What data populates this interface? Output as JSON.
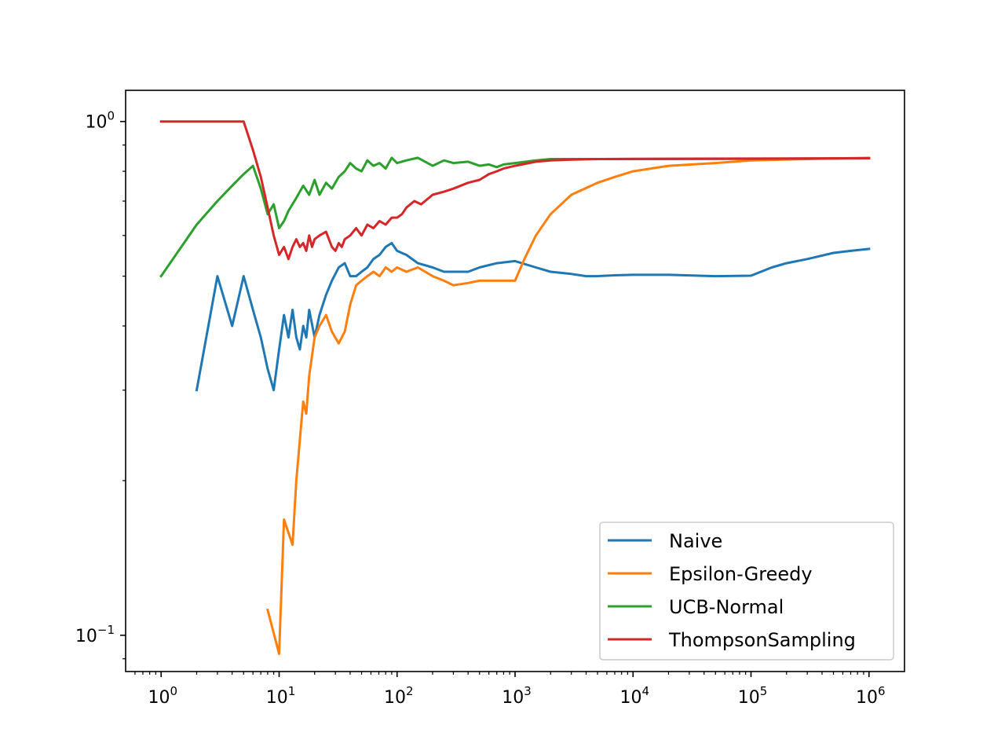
{
  "chart_data": {
    "type": "line",
    "title": "",
    "xlabel": "",
    "ylabel": "",
    "xscale": "log",
    "yscale": "log",
    "xlim": [
      0.5,
      2000000
    ],
    "ylim": [
      0.085,
      1.15
    ],
    "x_ticks": [
      {
        "base": "10",
        "exp": "0",
        "value": 1
      },
      {
        "base": "10",
        "exp": "1",
        "value": 10
      },
      {
        "base": "10",
        "exp": "2",
        "value": 100
      },
      {
        "base": "10",
        "exp": "3",
        "value": 1000
      },
      {
        "base": "10",
        "exp": "4",
        "value": 10000
      },
      {
        "base": "10",
        "exp": "5",
        "value": 100000
      },
      {
        "base": "10",
        "exp": "6",
        "value": 1000000
      }
    ],
    "y_ticks": [
      {
        "base": "10",
        "exp": "0",
        "value": 1
      },
      {
        "base": "10",
        "exp": "−1",
        "value": 0.1
      }
    ],
    "grid": false,
    "legend_position": "lower-right",
    "series": [
      {
        "name": "Naive",
        "color": "#1f77b4",
        "x": [
          2,
          3,
          4,
          5,
          6,
          7,
          8,
          9,
          10,
          11,
          12,
          13,
          14,
          15,
          16,
          17,
          18,
          20,
          22,
          25,
          28,
          32,
          36,
          40,
          45,
          50,
          56,
          63,
          71,
          80,
          90,
          100,
          120,
          150,
          200,
          250,
          300,
          400,
          500,
          700,
          1000,
          1500,
          2000,
          3000,
          4000,
          5000,
          7000,
          10000,
          20000,
          50000,
          100000,
          150000,
          200000,
          300000,
          500000,
          700000,
          1000000
        ],
        "y": [
          0.3,
          0.5,
          0.4,
          0.5,
          0.43,
          0.38,
          0.33,
          0.3,
          0.36,
          0.42,
          0.38,
          0.43,
          0.38,
          0.36,
          0.4,
          0.38,
          0.43,
          0.38,
          0.42,
          0.46,
          0.49,
          0.52,
          0.53,
          0.5,
          0.5,
          0.51,
          0.52,
          0.54,
          0.55,
          0.57,
          0.58,
          0.56,
          0.55,
          0.53,
          0.52,
          0.51,
          0.51,
          0.51,
          0.52,
          0.53,
          0.535,
          0.52,
          0.51,
          0.505,
          0.5,
          0.5,
          0.502,
          0.503,
          0.503,
          0.5,
          0.501,
          0.52,
          0.53,
          0.54,
          0.555,
          0.56,
          0.565
        ]
      },
      {
        "name": "Epsilon-Greedy",
        "color": "#ff7f0e",
        "x": [
          8,
          10,
          11,
          13,
          14,
          15,
          16,
          17,
          18,
          20,
          22,
          25,
          28,
          32,
          36,
          40,
          45,
          50,
          56,
          63,
          71,
          80,
          90,
          100,
          120,
          150,
          200,
          250,
          300,
          400,
          500,
          700,
          1000,
          1200,
          1500,
          2000,
          3000,
          5000,
          7000,
          10000,
          20000,
          50000,
          100000,
          300000,
          1000000
        ],
        "y": [
          0.112,
          0.092,
          0.168,
          0.15,
          0.2,
          0.24,
          0.285,
          0.27,
          0.32,
          0.38,
          0.4,
          0.42,
          0.39,
          0.37,
          0.39,
          0.44,
          0.48,
          0.49,
          0.5,
          0.51,
          0.5,
          0.52,
          0.51,
          0.52,
          0.51,
          0.52,
          0.5,
          0.49,
          0.48,
          0.485,
          0.49,
          0.49,
          0.49,
          0.54,
          0.6,
          0.66,
          0.72,
          0.76,
          0.78,
          0.8,
          0.82,
          0.83,
          0.84,
          0.845,
          0.85
        ]
      },
      {
        "name": "UCB-Normal",
        "color": "#2ca02c",
        "x": [
          1,
          2,
          3,
          4,
          5,
          6,
          7,
          8,
          9,
          10,
          11,
          12,
          14,
          16,
          18,
          20,
          22,
          25,
          28,
          32,
          36,
          40,
          45,
          50,
          56,
          63,
          71,
          80,
          90,
          100,
          120,
          150,
          200,
          250,
          300,
          400,
          500,
          600,
          700,
          800,
          1000,
          1500,
          2000,
          3000,
          5000,
          10000,
          100000,
          1000000
        ],
        "y": [
          0.5,
          0.63,
          0.7,
          0.75,
          0.79,
          0.82,
          0.74,
          0.66,
          0.69,
          0.62,
          0.64,
          0.67,
          0.71,
          0.75,
          0.72,
          0.77,
          0.72,
          0.76,
          0.74,
          0.78,
          0.8,
          0.83,
          0.81,
          0.8,
          0.84,
          0.82,
          0.83,
          0.81,
          0.85,
          0.83,
          0.84,
          0.85,
          0.82,
          0.84,
          0.83,
          0.835,
          0.82,
          0.825,
          0.815,
          0.825,
          0.83,
          0.84,
          0.845,
          0.845,
          0.845,
          0.845,
          0.846,
          0.848
        ]
      },
      {
        "name": "ThompsonSampling",
        "color": "#d62728",
        "x": [
          1,
          2,
          3,
          4,
          5,
          6,
          7,
          8,
          9,
          10,
          11,
          12,
          13,
          14,
          15,
          16,
          17,
          18,
          19,
          20,
          22,
          25,
          28,
          30,
          32,
          34,
          36,
          40,
          45,
          50,
          56,
          63,
          71,
          80,
          90,
          100,
          110,
          120,
          140,
          160,
          200,
          250,
          300,
          400,
          500,
          600,
          700,
          800,
          1000,
          1500,
          2000,
          3000,
          5000,
          10000,
          100000,
          1000000
        ],
        "y": [
          1.0,
          1.0,
          1.0,
          1.0,
          1.0,
          0.88,
          0.78,
          0.68,
          0.6,
          0.55,
          0.57,
          0.54,
          0.57,
          0.59,
          0.57,
          0.58,
          0.56,
          0.6,
          0.57,
          0.59,
          0.6,
          0.61,
          0.57,
          0.56,
          0.58,
          0.57,
          0.59,
          0.6,
          0.62,
          0.6,
          0.63,
          0.62,
          0.64,
          0.63,
          0.65,
          0.65,
          0.66,
          0.68,
          0.7,
          0.69,
          0.72,
          0.73,
          0.74,
          0.76,
          0.77,
          0.79,
          0.8,
          0.81,
          0.82,
          0.835,
          0.84,
          0.843,
          0.845,
          0.846,
          0.847,
          0.848
        ]
      }
    ]
  }
}
